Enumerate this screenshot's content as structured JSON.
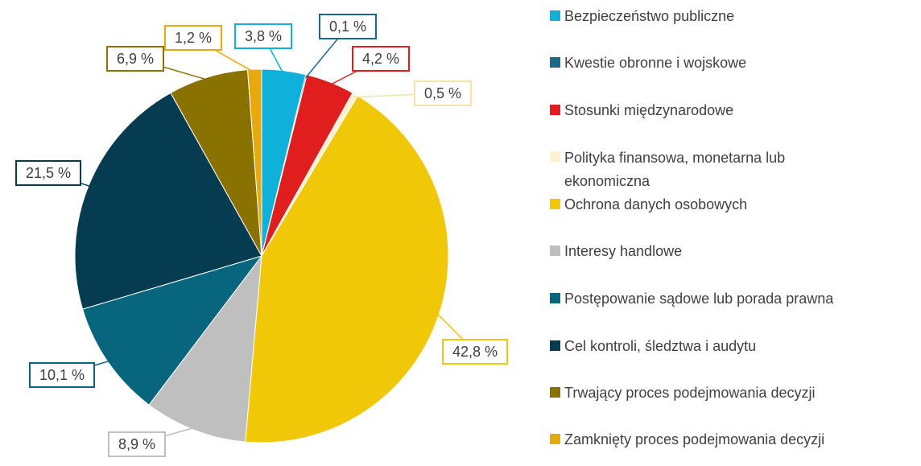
{
  "chart_data": {
    "type": "pie",
    "categories": [
      "Bezpieczeństwo publiczne",
      "Kwestie obronne i wojskowe",
      "Stosunki międzynarodowe",
      "Polityka finansowa, monetarna lub ekonomiczna",
      "Ochrona danych osobowych",
      "Interesy handlowe",
      "Postępowanie sądowe lub porada prawna",
      "Cel kontroli, śledztwa i audytu",
      "Trwający proces podejmowania decyzji",
      "Zamknięty proces podejmowania decyzji"
    ],
    "values": [
      3.8,
      0.1,
      4.2,
      0.5,
      42.8,
      8.9,
      10.1,
      21.5,
      6.9,
      1.2
    ],
    "value_labels": [
      "3,8 %",
      "0,1 %",
      "4,2 %",
      "0,5 %",
      "42,8 %",
      "8,9 %",
      "10,1 %",
      "21,5 %",
      "6,9 %",
      "1,2 %"
    ],
    "colors": [
      "#0fb0d9",
      "#17698a",
      "#e01e1e",
      "#fdf1cf",
      "#f0c808",
      "#bfbfbf",
      "#07667e",
      "#063c52",
      "#8a7200",
      "#e8a90c"
    ],
    "legend": "right"
  }
}
